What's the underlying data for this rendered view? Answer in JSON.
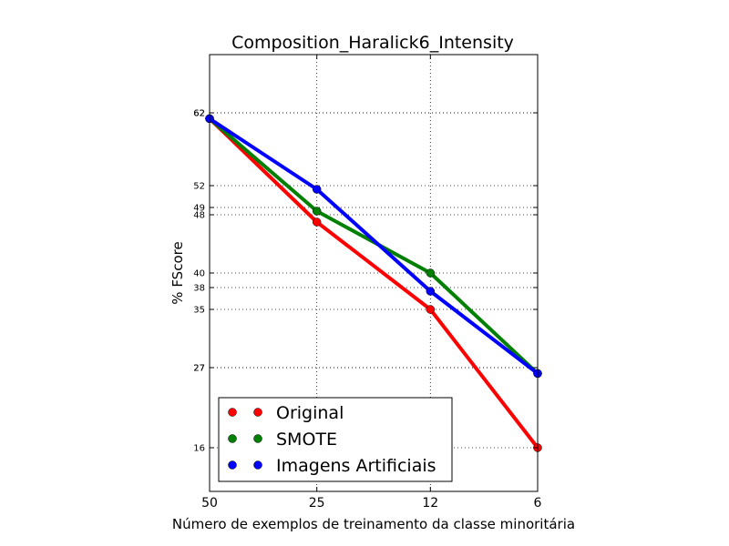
{
  "chart_data": {
    "type": "line",
    "title": "Composition_Haralick6_Intensity",
    "xlabel": "Número de exemplos de treinamento da classe minoritária",
    "ylabel": "% FScore",
    "x": [
      50,
      25,
      12,
      6
    ],
    "xticks": [
      "50",
      "25",
      "12",
      "6"
    ],
    "yticks": [
      "16",
      "27",
      "27",
      "35",
      "38",
      "40",
      "48",
      "49",
      "52",
      "62",
      "62"
    ],
    "ylim": [
      10,
      70
    ],
    "grid": true,
    "legend_position": "bottom-left",
    "series": [
      {
        "name": "Original",
        "color": "#ff0000",
        "values": [
          61.2,
          47,
          35,
          16
        ]
      },
      {
        "name": "SMOTE",
        "color": "#008000",
        "values": [
          61.2,
          48.5,
          40,
          26.2
        ]
      },
      {
        "name": "Imagens Artificiais",
        "color": "#0000ff",
        "values": [
          61.2,
          51.5,
          37.5,
          26.2
        ]
      }
    ]
  }
}
